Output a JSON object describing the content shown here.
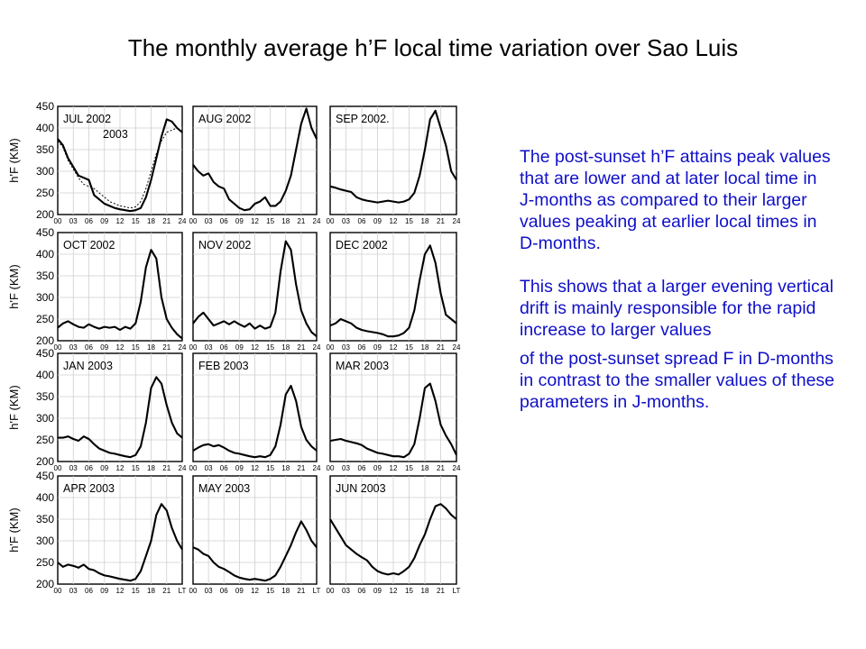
{
  "title": "The monthly average h’F local time variation over Sao Luis",
  "text": {
    "paragraph1": "The post-sunset h’F attains peak values that are lower and at later local time in J-months as compared to their larger values peaking at earlier local times in D-months.",
    "paragraph2": "This shows that a larger evening vertical drift is mainly responsible for the rapid increase to larger values",
    "paragraph3": "of the post-sunset spread F in D-months in contrast to the smaller values of these parameters in J-months."
  },
  "chart_data": {
    "type": "line",
    "ylabel": "h'F (KM)",
    "xlim": [
      0,
      24
    ],
    "ylim": [
      200,
      450
    ],
    "yticks": [
      "200",
      "250",
      "300",
      "350",
      "400",
      "450"
    ],
    "xticks": [
      "00",
      "03",
      "06",
      "09",
      "12",
      "15",
      "18",
      "21",
      "24"
    ],
    "last_row_xticks": [
      "00",
      "03",
      "06",
      "09",
      "12",
      "15",
      "18",
      "21",
      "LT"
    ],
    "panels": [
      {
        "label_lines": [
          "JUL 2002",
          "2003"
        ],
        "x": [
          0,
          1,
          2,
          3,
          4,
          5,
          6,
          7,
          8,
          9,
          10,
          11,
          12,
          13,
          14,
          15,
          16,
          17,
          18,
          19,
          20,
          21,
          22,
          23,
          24
        ],
        "y": [
          375,
          360,
          330,
          310,
          290,
          285,
          280,
          245,
          235,
          225,
          220,
          215,
          212,
          210,
          208,
          210,
          215,
          240,
          280,
          330,
          380,
          420,
          415,
          400,
          390
        ],
        "series2_y": [
          370,
          355,
          325,
          305,
          285,
          270,
          265,
          260,
          250,
          240,
          230,
          225,
          220,
          218,
          215,
          218,
          230,
          260,
          300,
          340,
          370,
          390,
          395,
          400,
          390
        ]
      },
      {
        "label_lines": [
          "AUG 2002"
        ],
        "x": [
          0,
          1,
          2,
          3,
          4,
          5,
          6,
          7,
          8,
          9,
          10,
          11,
          12,
          13,
          14,
          15,
          16,
          17,
          18,
          19,
          20,
          21,
          22,
          23,
          24
        ],
        "y": [
          315,
          300,
          290,
          295,
          275,
          265,
          260,
          235,
          225,
          215,
          210,
          212,
          225,
          230,
          240,
          220,
          220,
          230,
          255,
          290,
          350,
          410,
          445,
          400,
          375
        ]
      },
      {
        "label_lines": [
          "SEP 2002."
        ],
        "x": [
          0,
          1,
          2,
          3,
          4,
          5,
          6,
          7,
          8,
          9,
          10,
          11,
          12,
          13,
          14,
          15,
          16,
          17,
          18,
          19,
          20,
          21,
          22,
          23,
          24
        ],
        "y": [
          265,
          262,
          258,
          255,
          252,
          240,
          235,
          232,
          230,
          228,
          230,
          232,
          230,
          228,
          230,
          235,
          250,
          290,
          350,
          420,
          440,
          400,
          360,
          300,
          280
        ]
      },
      {
        "label_lines": [
          "OCT 2002"
        ],
        "x": [
          0,
          1,
          2,
          3,
          4,
          5,
          6,
          7,
          8,
          9,
          10,
          11,
          12,
          13,
          14,
          15,
          16,
          17,
          18,
          19,
          20,
          21,
          22,
          23,
          24
        ],
        "y": [
          230,
          240,
          245,
          238,
          232,
          230,
          238,
          232,
          228,
          232,
          230,
          232,
          225,
          232,
          228,
          240,
          290,
          370,
          410,
          390,
          300,
          250,
          230,
          215,
          205
        ]
      },
      {
        "label_lines": [
          "NOV 2002"
        ],
        "x": [
          0,
          1,
          2,
          3,
          4,
          5,
          6,
          7,
          8,
          9,
          10,
          11,
          12,
          13,
          14,
          15,
          16,
          17,
          18,
          19,
          20,
          21,
          22,
          23,
          24
        ],
        "y": [
          240,
          255,
          265,
          250,
          235,
          240,
          245,
          238,
          245,
          238,
          232,
          240,
          228,
          235,
          228,
          232,
          265,
          360,
          430,
          410,
          330,
          270,
          240,
          220,
          210
        ]
      },
      {
        "label_lines": [
          "DEC 2002"
        ],
        "x": [
          0,
          1,
          2,
          3,
          4,
          5,
          6,
          7,
          8,
          9,
          10,
          11,
          12,
          13,
          14,
          15,
          16,
          17,
          18,
          19,
          20,
          21,
          22,
          23,
          24
        ],
        "y": [
          235,
          240,
          250,
          245,
          240,
          230,
          225,
          222,
          220,
          218,
          215,
          210,
          210,
          212,
          218,
          230,
          270,
          340,
          400,
          420,
          380,
          310,
          260,
          250,
          240
        ]
      },
      {
        "label_lines": [
          "JAN 2003"
        ],
        "x": [
          0,
          1,
          2,
          3,
          4,
          5,
          6,
          7,
          8,
          9,
          10,
          11,
          12,
          13,
          14,
          15,
          16,
          17,
          18,
          19,
          20,
          21,
          22,
          23,
          24
        ],
        "y": [
          255,
          255,
          258,
          252,
          248,
          258,
          252,
          240,
          230,
          225,
          220,
          218,
          215,
          212,
          210,
          215,
          235,
          290,
          370,
          395,
          380,
          330,
          290,
          265,
          255
        ]
      },
      {
        "label_lines": [
          "FEB 2003"
        ],
        "x": [
          0,
          1,
          2,
          3,
          4,
          5,
          6,
          7,
          8,
          9,
          10,
          11,
          12,
          13,
          14,
          15,
          16,
          17,
          18,
          19,
          20,
          21,
          22,
          23,
          24
        ],
        "y": [
          225,
          232,
          238,
          240,
          235,
          238,
          232,
          225,
          220,
          218,
          215,
          212,
          210,
          212,
          210,
          215,
          235,
          285,
          355,
          375,
          340,
          280,
          250,
          235,
          225
        ]
      },
      {
        "label_lines": [
          "MAR 2003"
        ],
        "x": [
          0,
          1,
          2,
          3,
          4,
          5,
          6,
          7,
          8,
          9,
          10,
          11,
          12,
          13,
          14,
          15,
          16,
          17,
          18,
          19,
          20,
          21,
          22,
          23,
          24
        ],
        "y": [
          248,
          250,
          252,
          248,
          245,
          242,
          238,
          230,
          225,
          220,
          218,
          215,
          212,
          212,
          210,
          218,
          240,
          300,
          370,
          380,
          340,
          285,
          260,
          240,
          215
        ]
      },
      {
        "label_lines": [
          "APR 2003"
        ],
        "x": [
          0,
          1,
          2,
          3,
          4,
          5,
          6,
          7,
          8,
          9,
          10,
          11,
          12,
          13,
          14,
          15,
          16,
          17,
          18,
          19,
          20,
          21,
          22,
          23,
          24
        ],
        "y": [
          250,
          240,
          245,
          242,
          238,
          245,
          235,
          232,
          225,
          220,
          218,
          215,
          212,
          210,
          208,
          212,
          230,
          265,
          300,
          360,
          385,
          370,
          330,
          300,
          280
        ]
      },
      {
        "label_lines": [
          "MAY 2003"
        ],
        "x": [
          0,
          1,
          2,
          3,
          4,
          5,
          6,
          7,
          8,
          9,
          10,
          11,
          12,
          13,
          14,
          15,
          16,
          17,
          18,
          19,
          20,
          21,
          22,
          23,
          24
        ],
        "y": [
          285,
          280,
          270,
          265,
          250,
          240,
          235,
          228,
          220,
          215,
          212,
          210,
          212,
          210,
          208,
          212,
          220,
          240,
          265,
          290,
          320,
          345,
          325,
          300,
          285
        ]
      },
      {
        "label_lines": [
          "JUN 2003"
        ],
        "x": [
          0,
          1,
          2,
          3,
          4,
          5,
          6,
          7,
          8,
          9,
          10,
          11,
          12,
          13,
          14,
          15,
          16,
          17,
          18,
          19,
          20,
          21,
          22,
          23,
          24
        ],
        "y": [
          350,
          330,
          310,
          290,
          280,
          270,
          262,
          255,
          240,
          230,
          225,
          222,
          225,
          222,
          230,
          240,
          260,
          290,
          315,
          350,
          380,
          385,
          375,
          360,
          350
        ]
      }
    ]
  }
}
